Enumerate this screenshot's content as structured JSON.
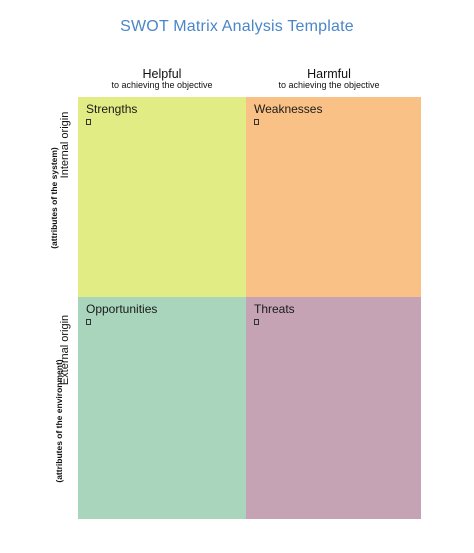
{
  "title": "SWOT Matrix Analysis Template",
  "columns": {
    "helpful": {
      "label": "Helpful",
      "sub": "to achieving the objective"
    },
    "harmful": {
      "label": "Harmful",
      "sub": "to achieving the objective"
    }
  },
  "rows": {
    "internal": {
      "label": "Internal origin",
      "sub": "(attributes of the system)"
    },
    "external": {
      "label": "External origin",
      "sub": "(attributes of the environment)"
    }
  },
  "quadrants": {
    "strengths": {
      "label": "Strengths",
      "color": "#e2ec84"
    },
    "weaknesses": {
      "label": "Weaknesses",
      "color": "#f9c186"
    },
    "opportunities": {
      "label": "Opportunities",
      "color": "#a9d5bc"
    },
    "threats": {
      "label": "Threats",
      "color": "#c5a3b4"
    }
  }
}
